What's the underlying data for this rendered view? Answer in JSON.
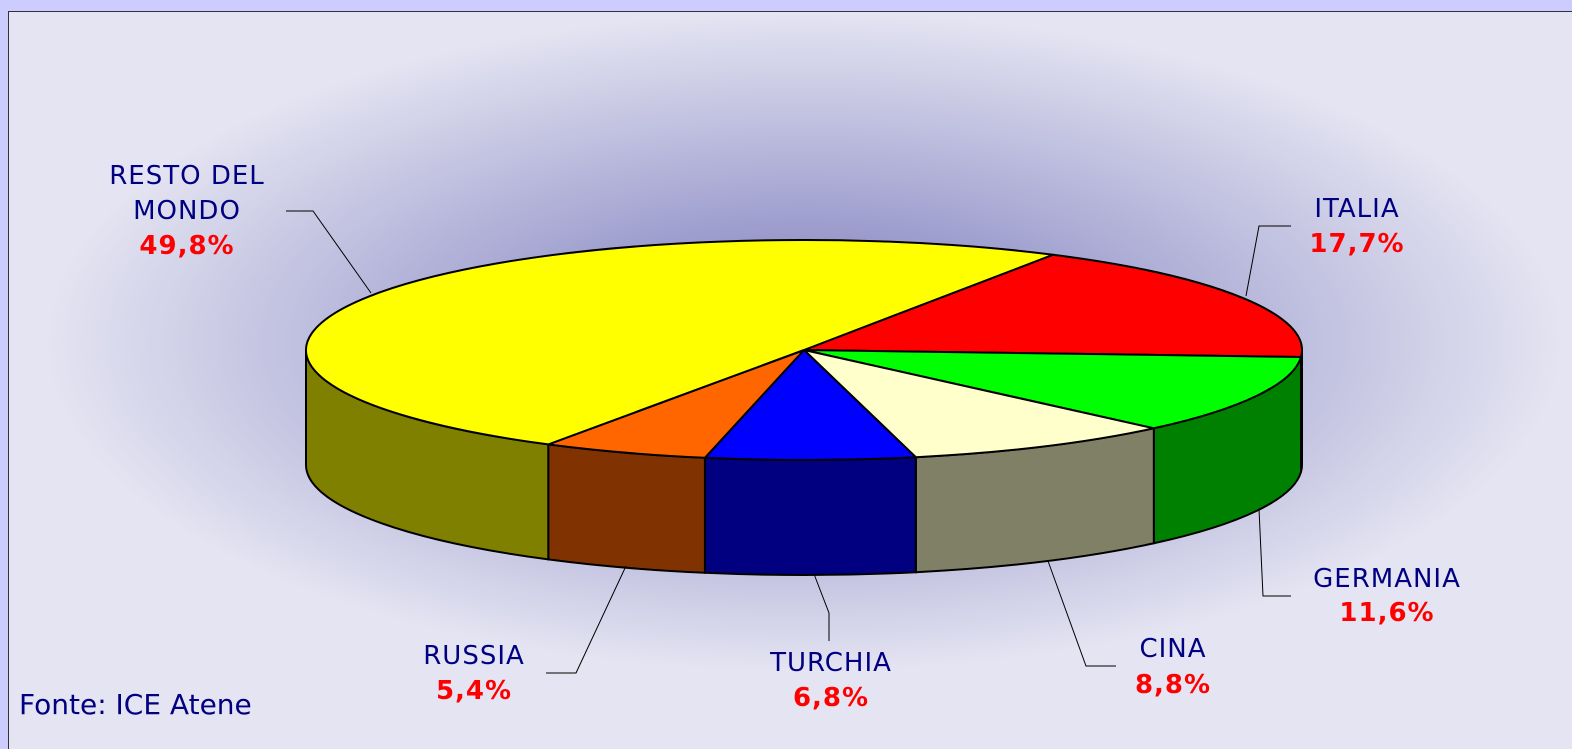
{
  "chart_data": {
    "type": "pie3d",
    "categories": [
      "ITALIA",
      "GERMANIA",
      "CINA",
      "TURCHIA",
      "RUSSIA",
      "RESTO DEL MONDO"
    ],
    "values": [
      17.7,
      11.6,
      8.8,
      6.8,
      5.4,
      49.8
    ],
    "value_labels": [
      "17,7%",
      "11,6%",
      "8,8%",
      "6,8%",
      "5,4%",
      "49,8%"
    ],
    "colors": [
      "#ff0000",
      "#00ff00",
      "#ffffcc",
      "#0000ff",
      "#ff6600",
      "#ffff00"
    ],
    "source": "Fonte: ICE Atene"
  }
}
